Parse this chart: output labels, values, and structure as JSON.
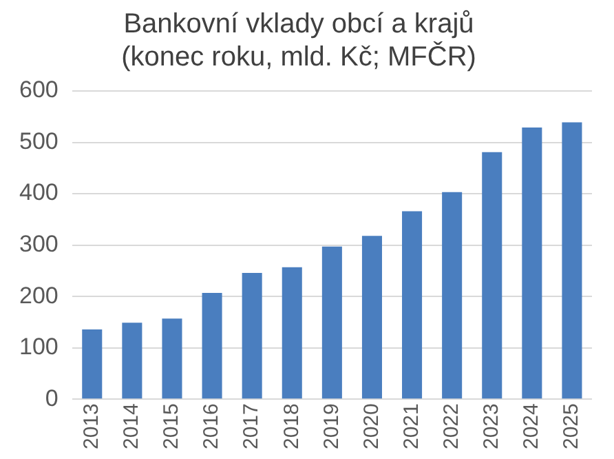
{
  "chart_data": {
    "type": "bar",
    "title": [
      "Bankovní vklady obcí a krajů",
      "(konec roku, mld. Kč; MFČR)"
    ],
    "categories": [
      "2013",
      "2014",
      "2015",
      "2016",
      "2017",
      "2018",
      "2019",
      "2020",
      "2021",
      "2022",
      "2023",
      "2024",
      "2025"
    ],
    "values": [
      136,
      149,
      157,
      207,
      246,
      257,
      297,
      318,
      366,
      403,
      481,
      529,
      539
    ],
    "color": "#4a7ebf",
    "ylim": [
      0,
      600
    ],
    "yticks": [
      0,
      100,
      200,
      300,
      400,
      500,
      600
    ],
    "grid": "y",
    "legend": false
  }
}
